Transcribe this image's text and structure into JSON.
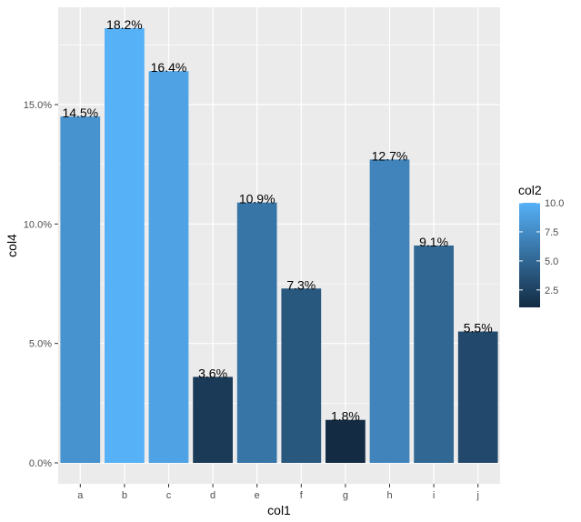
{
  "chart_data": {
    "type": "bar",
    "xlabel": "col1",
    "ylabel": "col4",
    "categories": [
      "a",
      "b",
      "c",
      "d",
      "e",
      "f",
      "g",
      "h",
      "i",
      "j"
    ],
    "values": [
      0.145,
      0.182,
      0.164,
      0.036,
      0.109,
      0.073,
      0.018,
      0.127,
      0.091,
      0.055
    ],
    "labels": [
      "14.5%",
      "18.2%",
      "16.4%",
      "3.6%",
      "10.9%",
      "7.3%",
      "1.8%",
      "12.7%",
      "9.1%",
      "5.5%"
    ],
    "color_values": [
      8,
      10,
      9,
      2,
      6,
      4,
      1,
      7,
      5,
      3
    ],
    "ylim": [
      0,
      0.19
    ],
    "y_ticks": [
      0,
      0.05,
      0.1,
      0.15
    ],
    "y_tick_labels": [
      "0.0%",
      "5.0%",
      "10.0%",
      "15.0%"
    ],
    "grid": true,
    "legend": {
      "title": "col2",
      "position": "right",
      "range": [
        1,
        10
      ],
      "ticks": [
        2.5,
        5.0,
        7.5,
        10.0
      ],
      "tick_labels": [
        "2.5",
        "5.0",
        "7.5",
        "10.0"
      ],
      "low_color": "#132b43",
      "high_color": "#56b1f7"
    },
    "panel_background": "#ebebeb",
    "grid_color": "#ffffff"
  }
}
